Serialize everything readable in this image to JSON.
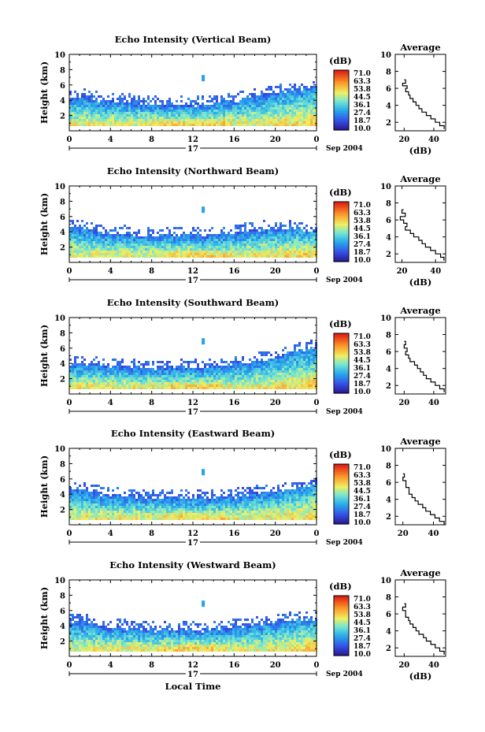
{
  "chart_data": [
    {
      "type": "heatmap",
      "title": "Echo Intensity (Vertical Beam)",
      "ylabel": "Height (km)",
      "xticks": [
        "0",
        "4",
        "8",
        "12",
        "16",
        "20",
        "0"
      ],
      "yticks": [
        "2",
        "4",
        "6",
        "8",
        "10"
      ],
      "xlim": [
        0,
        24
      ],
      "ylim": [
        0,
        10
      ],
      "day_label": "17",
      "date_label": "Sep 2004",
      "colorbar": {
        "unit": "(dB)",
        "labels": [
          "71.0",
          "63.3",
          "53.8",
          "44.5",
          "36.1",
          "27.4",
          "18.7",
          "10.0"
        ]
      },
      "echo_top_km": [
        4.3,
        4.5,
        4.2,
        3.9,
        4.0,
        3.8,
        3.6,
        3.5,
        3.4,
        3.5,
        3.6,
        3.5,
        3.4,
        3.5,
        3.6,
        3.8,
        3.9,
        4.3,
        4.5,
        4.7,
        5.0,
        5.2,
        5.3
      ],
      "profile": {
        "title": "Average",
        "xlabel": "(dB)",
        "xticks": [
          "20",
          "40"
        ],
        "yticks": [
          "2",
          "4",
          "6",
          "8",
          "10"
        ],
        "xlim": [
          14,
          48
        ],
        "ylim": [
          1,
          10
        ],
        "height_km": [
          7.0,
          6.6,
          6.3,
          6.0,
          5.6,
          5.2,
          4.8,
          4.4,
          4.0,
          3.6,
          3.2,
          2.8,
          2.4,
          2.0,
          1.6,
          1.2
        ],
        "db": [
          20,
          21,
          19,
          22,
          21,
          23,
          24,
          26,
          28,
          30,
          32,
          35,
          38,
          41,
          44,
          47
        ]
      }
    },
    {
      "type": "heatmap",
      "title": "Echo Intensity (Northward Beam)",
      "ylabel": "Height (km)",
      "xticks": [
        "0",
        "4",
        "8",
        "12",
        "16",
        "20",
        "0"
      ],
      "yticks": [
        "2",
        "4",
        "6",
        "8",
        "10"
      ],
      "xlim": [
        0,
        24
      ],
      "ylim": [
        0,
        10
      ],
      "day_label": "17",
      "date_label": "Sep 2004",
      "colorbar": {
        "unit": "(dB)",
        "labels": [
          "71.0",
          "63.3",
          "53.8",
          "44.5",
          "36.1",
          "27.4",
          "18.7",
          "10.0"
        ]
      },
      "echo_top_km": [
        4.6,
        4.5,
        4.2,
        3.9,
        3.8,
        3.7,
        3.6,
        3.5,
        3.5,
        3.5,
        3.6,
        3.8,
        3.6,
        3.5,
        3.5,
        3.6,
        3.8,
        4.0,
        4.2,
        4.3,
        4.5,
        4.4,
        4.3
      ],
      "profile": {
        "title": "Average",
        "xlabel": "(dB)",
        "xticks": [
          "20",
          "40"
        ],
        "yticks": [
          "2",
          "4",
          "6",
          "8",
          "10"
        ],
        "xlim": [
          16,
          46
        ],
        "ylim": [
          1,
          10
        ],
        "height_km": [
          7.2,
          6.8,
          6.4,
          6.0,
          5.6,
          5.2,
          4.8,
          4.4,
          4.0,
          3.6,
          3.2,
          2.8,
          2.4,
          2.0,
          1.6,
          1.2
        ],
        "db": [
          21,
          20,
          22,
          19,
          21,
          23,
          22,
          25,
          27,
          30,
          32,
          34,
          37,
          40,
          43,
          45
        ]
      }
    },
    {
      "type": "heatmap",
      "title": "Echo Intensity (Southward Beam)",
      "ylabel": "Height (km)",
      "xticks": [
        "0",
        "4",
        "8",
        "12",
        "16",
        "20",
        "0"
      ],
      "yticks": [
        "2",
        "4",
        "6",
        "8",
        "10"
      ],
      "xlim": [
        0,
        24
      ],
      "ylim": [
        0,
        10
      ],
      "day_label": "17",
      "date_label": "Sep 2004",
      "colorbar": {
        "unit": "(dB)",
        "labels": [
          "71.0",
          "63.3",
          "53.8",
          "44.5",
          "36.1",
          "27.4",
          "18.7",
          "10.0"
        ]
      },
      "echo_top_km": [
        4.0,
        3.9,
        3.8,
        3.7,
        3.6,
        3.5,
        3.5,
        3.4,
        3.4,
        3.3,
        3.4,
        3.5,
        3.4,
        3.5,
        3.6,
        3.8,
        3.9,
        4.0,
        4.3,
        4.6,
        4.9,
        5.2,
        5.5
      ],
      "profile": {
        "title": "Average",
        "xlabel": "",
        "xticks": [
          "20",
          "40"
        ],
        "yticks": [
          "2",
          "4",
          "6",
          "8",
          "10"
        ],
        "xlim": [
          14,
          48
        ],
        "ylim": [
          1,
          10
        ],
        "height_km": [
          7.2,
          6.8,
          6.4,
          6.0,
          5.6,
          5.2,
          4.8,
          4.4,
          4.0,
          3.6,
          3.2,
          2.8,
          2.4,
          2.0,
          1.6,
          1.2
        ],
        "db": [
          20,
          21,
          20,
          22,
          21,
          23,
          24,
          27,
          29,
          31,
          33,
          35,
          38,
          41,
          44,
          47
        ]
      }
    },
    {
      "type": "heatmap",
      "title": "Echo Intensity (Eastward Beam)",
      "ylabel": "Height (km)",
      "xticks": [
        "0",
        "4",
        "8",
        "12",
        "16",
        "20",
        "0"
      ],
      "yticks": [
        "2",
        "4",
        "6",
        "8",
        "10"
      ],
      "xlim": [
        0,
        24
      ],
      "ylim": [
        0,
        10
      ],
      "day_label": "17",
      "date_label": "Sep 2004",
      "colorbar": {
        "unit": "(dB)",
        "labels": [
          "71.0",
          "63.3",
          "53.8",
          "44.5",
          "36.1",
          "27.4",
          "18.7",
          "10.0"
        ]
      },
      "echo_top_km": [
        4.5,
        4.6,
        4.4,
        4.0,
        3.9,
        3.7,
        3.6,
        3.5,
        3.5,
        3.4,
        3.5,
        3.6,
        3.5,
        3.4,
        3.5,
        3.6,
        3.7,
        3.9,
        4.1,
        4.3,
        4.5,
        4.6,
        4.8
      ],
      "profile": {
        "title": "Average",
        "xlabel": "",
        "xticks": [
          "20",
          "40"
        ],
        "yticks": [
          "2",
          "4",
          "6",
          "8",
          "10"
        ],
        "xlim": [
          15,
          48
        ],
        "ylim": [
          1,
          10
        ],
        "height_km": [
          7.0,
          6.6,
          6.2,
          5.8,
          5.4,
          5.0,
          4.6,
          4.2,
          3.8,
          3.4,
          3.0,
          2.6,
          2.2,
          1.8,
          1.4,
          1.0
        ],
        "db": [
          20,
          21,
          20,
          22,
          22,
          24,
          24,
          26,
          28,
          30,
          33,
          35,
          38,
          41,
          44,
          47
        ]
      }
    },
    {
      "type": "heatmap",
      "title": "Echo Intensity (Westward Beam)",
      "ylabel": "Height (km)",
      "xlabel": "Local Time",
      "xticks": [
        "0",
        "4",
        "8",
        "12",
        "16",
        "20",
        "0"
      ],
      "yticks": [
        "2",
        "4",
        "6",
        "8",
        "10"
      ],
      "xlim": [
        0,
        24
      ],
      "ylim": [
        0,
        10
      ],
      "day_label": "17",
      "date_label": "Sep 2004",
      "colorbar": {
        "unit": "(dB)",
        "labels": [
          "71.0",
          "63.3",
          "53.8",
          "44.5",
          "36.1",
          "27.4",
          "18.7",
          "10.0"
        ]
      },
      "echo_top_km": [
        4.4,
        4.6,
        4.3,
        4.0,
        3.9,
        3.8,
        3.6,
        3.5,
        3.4,
        3.5,
        3.6,
        3.5,
        3.4,
        3.4,
        3.5,
        3.6,
        3.8,
        4.0,
        4.1,
        4.3,
        4.5,
        4.6,
        4.7
      ],
      "profile": {
        "title": "Average",
        "xlabel": "(dB)",
        "xticks": [
          "20",
          "40"
        ],
        "yticks": [
          "2",
          "4",
          "6",
          "8",
          "10"
        ],
        "xlim": [
          14,
          48
        ],
        "ylim": [
          1,
          10
        ],
        "height_km": [
          7.2,
          6.8,
          6.4,
          6.0,
          5.6,
          5.2,
          4.8,
          4.4,
          4.0,
          3.6,
          3.2,
          2.8,
          2.4,
          2.0,
          1.6,
          1.2
        ],
        "db": [
          20,
          21,
          19,
          21,
          21,
          23,
          24,
          26,
          28,
          30,
          33,
          35,
          38,
          41,
          44,
          47
        ]
      }
    }
  ]
}
